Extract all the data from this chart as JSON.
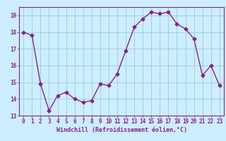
{
  "x": [
    0,
    1,
    2,
    3,
    4,
    5,
    6,
    7,
    8,
    9,
    10,
    11,
    12,
    13,
    14,
    15,
    16,
    17,
    18,
    19,
    20,
    21,
    22,
    23
  ],
  "y": [
    18.0,
    17.8,
    14.9,
    13.3,
    14.2,
    14.4,
    14.0,
    13.8,
    13.9,
    14.9,
    14.8,
    15.5,
    16.9,
    18.3,
    18.8,
    19.2,
    19.1,
    19.2,
    18.5,
    18.2,
    17.6,
    15.4,
    16.0,
    14.8
  ],
  "line_color": "#882288",
  "marker": "D",
  "marker_size": 2.5,
  "bg_color": "#cceeff",
  "grid_color": "#99ccdd",
  "xlabel": "Windchill (Refroidissement éolien,°C)",
  "xlabel_color": "#882288",
  "tick_color": "#882288",
  "ylim": [
    13,
    19.5
  ],
  "xlim": [
    -0.5,
    23.5
  ],
  "yticks": [
    13,
    14,
    15,
    16,
    17,
    18,
    19
  ],
  "xticks": [
    0,
    1,
    2,
    3,
    4,
    5,
    6,
    7,
    8,
    9,
    10,
    11,
    12,
    13,
    14,
    15,
    16,
    17,
    18,
    19,
    20,
    21,
    22,
    23
  ],
  "line_width": 1.0,
  "font_size_tick": 5.5,
  "font_size_label": 6.0
}
